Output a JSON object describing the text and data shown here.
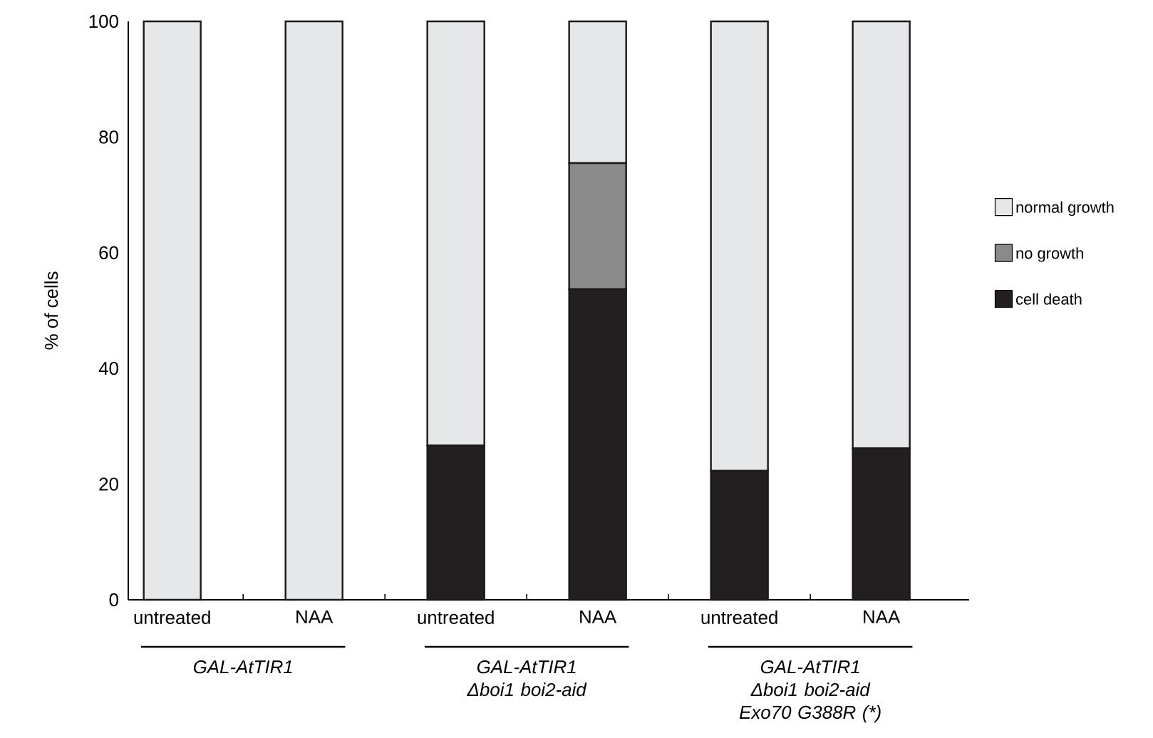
{
  "chart_data": {
    "type": "bar",
    "stacked": true,
    "ylabel": "% of cells",
    "categories": [
      "untreated",
      "NAA",
      "untreated",
      "NAA",
      "untreated",
      "NAA"
    ],
    "series": [
      {
        "name": "cell death",
        "color": "#231f20",
        "values": [
          0,
          0,
          26.7,
          53.7,
          22.3,
          26.2
        ]
      },
      {
        "name": "no growth",
        "color": "#8a8a8a",
        "values": [
          0,
          0,
          0,
          21.8,
          0,
          0
        ]
      },
      {
        "name": "normal growth",
        "color": "#e6e7e8",
        "values": [
          100,
          100,
          73.3,
          24.5,
          77.7,
          73.8
        ]
      }
    ],
    "ylim": [
      0,
      100
    ],
    "yticks": [
      0,
      20,
      40,
      60,
      80,
      100
    ],
    "legend": "right",
    "annotations": [
      "GAL-AtTIR1",
      "GAL-AtTIR1 Δboi1 boi2-aid",
      "GAL-AtTIR1 Δboi1 boi2-aid Exo70 G388R (*)"
    ]
  }
}
